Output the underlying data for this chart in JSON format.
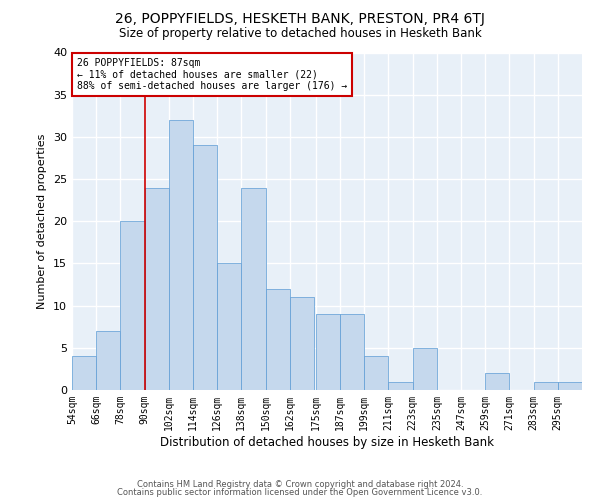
{
  "title": "26, POPPYFIELDS, HESKETH BANK, PRESTON, PR4 6TJ",
  "subtitle": "Size of property relative to detached houses in Hesketh Bank",
  "xlabel": "Distribution of detached houses by size in Hesketh Bank",
  "ylabel": "Number of detached properties",
  "bar_color": "#c5d8ed",
  "bar_edge_color": "#5b9bd5",
  "bg_color": "#e8f0f8",
  "grid_color": "white",
  "annotation_box_color": "#cc0000",
  "vline_color": "#cc0000",
  "vline_x": 90,
  "annotation_text": "26 POPPYFIELDS: 87sqm\n← 11% of detached houses are smaller (22)\n88% of semi-detached houses are larger (176) →",
  "footer1": "Contains HM Land Registry data © Crown copyright and database right 2024.",
  "footer2": "Contains public sector information licensed under the Open Government Licence v3.0.",
  "bins": [
    54,
    66,
    78,
    90,
    102,
    114,
    126,
    138,
    150,
    162,
    175,
    187,
    199,
    211,
    223,
    235,
    247,
    259,
    271,
    283,
    295
  ],
  "values": [
    4,
    7,
    20,
    24,
    32,
    29,
    15,
    24,
    12,
    11,
    9,
    9,
    4,
    1,
    5,
    0,
    0,
    2,
    0,
    1,
    1
  ],
  "ylim": [
    0,
    40
  ],
  "yticks": [
    0,
    5,
    10,
    15,
    20,
    25,
    30,
    35,
    40
  ],
  "title_fontsize": 10,
  "subtitle_fontsize": 8.5,
  "xlabel_fontsize": 8.5,
  "ylabel_fontsize": 8,
  "tick_fontsize": 7,
  "annotation_fontsize": 7,
  "footer_fontsize": 6
}
